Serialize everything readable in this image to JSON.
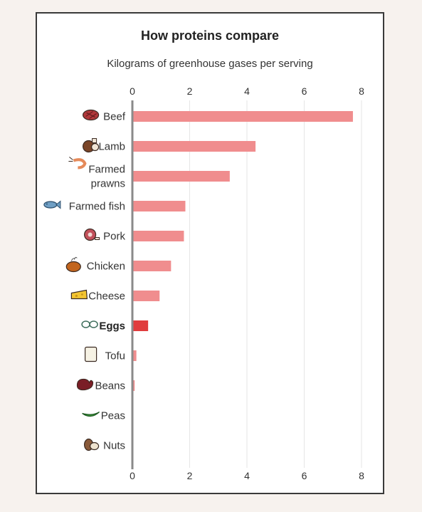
{
  "chart_data": {
    "type": "bar",
    "orientation": "horizontal",
    "title": "How proteins compare",
    "subtitle": "Kilograms of greenhouse gases per serving",
    "xlim": [
      0,
      8
    ],
    "xticks": [
      "0",
      "2",
      "4",
      "6",
      "8"
    ],
    "grid": true,
    "categories": [
      {
        "label": [
          "Beef"
        ],
        "value": 7.7,
        "icon": "steak-icon"
      },
      {
        "label": [
          "Lamb"
        ],
        "value": 4.3,
        "icon": "lamb-chop-icon"
      },
      {
        "label": [
          "Farmed",
          "prawns"
        ],
        "value": 3.4,
        "icon": "prawn-icon"
      },
      {
        "label": [
          "Farmed fish"
        ],
        "value": 1.85,
        "icon": "fish-icon"
      },
      {
        "label": [
          "Pork"
        ],
        "value": 1.8,
        "icon": "ham-icon"
      },
      {
        "label": [
          "Chicken"
        ],
        "value": 1.35,
        "icon": "roast-chicken-icon"
      },
      {
        "label": [
          "Cheese"
        ],
        "value": 0.95,
        "icon": "cheese-icon"
      },
      {
        "label": [
          "Eggs"
        ],
        "value": 0.55,
        "icon": "eggs-icon",
        "highlight": true
      },
      {
        "label": [
          "Tofu"
        ],
        "value": 0.14,
        "icon": "tofu-icon"
      },
      {
        "label": [
          "Beans"
        ],
        "value": 0.08,
        "icon": "bean-icon"
      },
      {
        "label": [
          "Peas"
        ],
        "value": 0.01,
        "icon": "pea-pod-icon"
      },
      {
        "label": [
          "Nuts"
        ],
        "value": 0.01,
        "icon": "nuts-icon"
      }
    ],
    "colors": {
      "bar": "#f08d8e",
      "highlight": "#e03c3d",
      "grid": "#e6e6e6",
      "axis": "#8a8a8a"
    }
  }
}
